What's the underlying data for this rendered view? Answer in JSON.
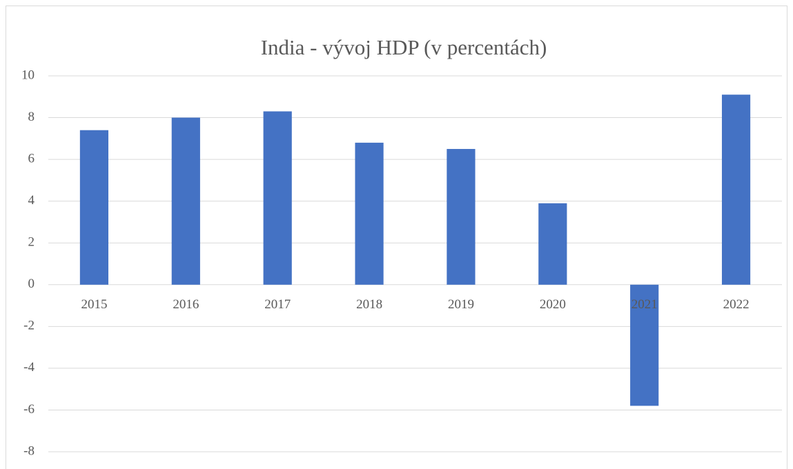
{
  "chart_data": {
    "type": "bar",
    "title": "India - vývoj HDP (v percentách)",
    "categories": [
      "2015",
      "2016",
      "2017",
      "2018",
      "2019",
      "2020",
      "2021",
      "2022"
    ],
    "values": [
      7.4,
      8.0,
      8.3,
      6.8,
      6.5,
      3.9,
      -5.8,
      9.1
    ],
    "color": "#4472c4",
    "ylim": [
      -8,
      10
    ],
    "yticks": [
      -8,
      -6,
      -4,
      -2,
      0,
      2,
      4,
      6,
      8,
      10
    ],
    "grid": true
  }
}
